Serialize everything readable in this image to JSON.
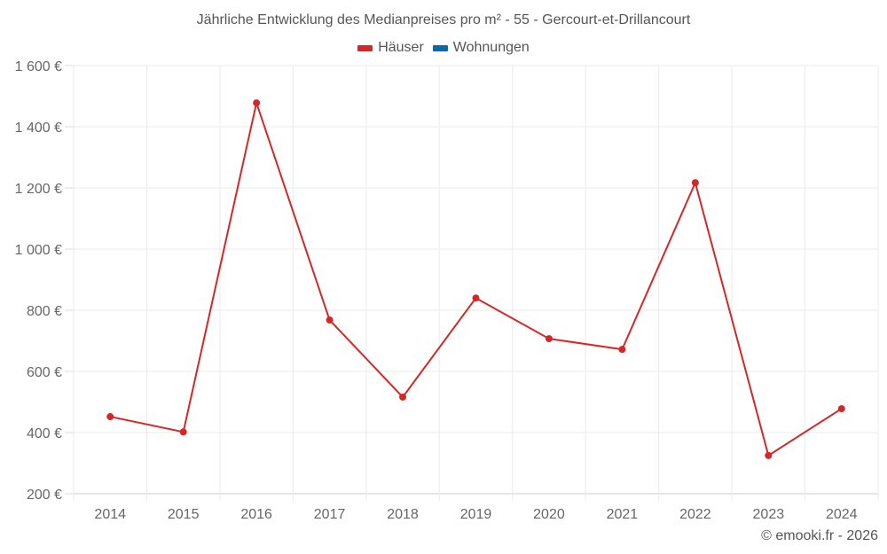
{
  "chart_data": {
    "type": "line",
    "title": "Jährliche Entwicklung des Medianpreises pro m² - 55 - Gercourt-et-Drillancourt",
    "xlabel": "",
    "ylabel": "",
    "categories": [
      "2014",
      "2015",
      "2016",
      "2017",
      "2018",
      "2019",
      "2020",
      "2021",
      "2022",
      "2023",
      "2024"
    ],
    "series": [
      {
        "name": "Häuser",
        "color": "#d62728",
        "values": [
          452,
          402,
          1478,
          768,
          516,
          840,
          707,
          672,
          1217,
          325,
          478
        ]
      },
      {
        "name": "Wohnungen",
        "color": "#0868a8",
        "values": []
      }
    ],
    "ylim": [
      200,
      1600
    ],
    "yticks": [
      200,
      400,
      600,
      800,
      1000,
      1200,
      1400,
      1600
    ],
    "ytick_labels": [
      "200 €",
      "400 €",
      "600 €",
      "800 €",
      "1 000 €",
      "1 200 €",
      "1 400 €",
      "1 600 €"
    ],
    "grid": true,
    "legend_position": "top"
  },
  "title": "Jährliche Entwicklung des Medianpreises pro m² - 55 - Gercourt-et-Drillancourt",
  "legend": [
    {
      "label": "Häuser",
      "color": "#d62728"
    },
    {
      "label": "Wohnungen",
      "color": "#0868a8"
    }
  ],
  "credit": "© emooki.fr - 2026"
}
